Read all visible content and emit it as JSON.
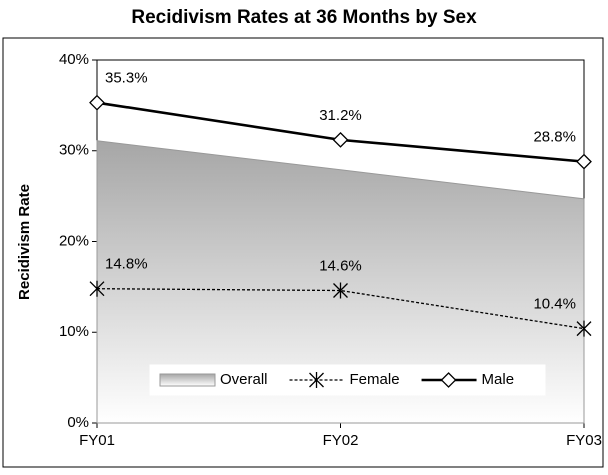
{
  "chart_data": {
    "type": "line",
    "title": "Recidivism Rates at 36 Months by Sex",
    "y_label": "Recidivism Rate",
    "categories": [
      "FY01",
      "FY02",
      "FY03"
    ],
    "series": [
      {
        "name": "Overall",
        "color": "#a6a6a6",
        "kind": "area",
        "values": [
          31.1,
          27.9,
          24.7
        ]
      },
      {
        "name": "Female",
        "color": "#000000",
        "kind": "line",
        "dash": true,
        "marker": "x",
        "values": [
          14.8,
          14.6,
          10.4
        ],
        "value_labels": [
          "14.8%",
          "14.6%",
          "10.4%"
        ]
      },
      {
        "name": "Male",
        "color": "#000000",
        "kind": "line",
        "dash": false,
        "marker": "diamond",
        "values": [
          35.3,
          31.2,
          28.8
        ],
        "value_labels": [
          "35.3%",
          "31.2%",
          "28.8%"
        ]
      }
    ],
    "ylim": [
      0,
      40
    ],
    "yticks": [
      {
        "value": 0,
        "label": "0%"
      },
      {
        "value": 10,
        "label": "10%"
      },
      {
        "value": 20,
        "label": "20%"
      },
      {
        "value": 30,
        "label": "30%"
      },
      {
        "value": 40,
        "label": "40%"
      }
    ],
    "legend": "bottom"
  }
}
